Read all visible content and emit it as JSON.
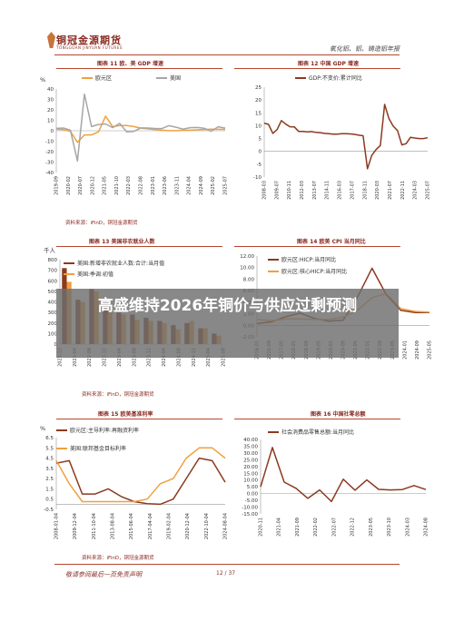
{
  "header": {
    "logo_text": "铜冠金源期货",
    "logo_sub": "TONGGUAN JINYUAN FUTURES",
    "right_title": "氧化铝、铝、铸造铝年报"
  },
  "charts": [
    {
      "caption": "图表 11 欧、美 GDP 增速",
      "source": "资料来源：iFinD，铜冠金源期货"
    },
    {
      "caption": "图表 12 中国 GDP 增速",
      "source": ""
    },
    {
      "caption": "图表 13 美国非农就业人数",
      "source": "资料来源：iFinD，铜冠金源期货"
    },
    {
      "caption": "图表 14 欧美 CPI 当月同比",
      "source": ""
    },
    {
      "caption": "图表 15 欧美基准利率",
      "source": "资料来源：iFinD，铜冠金源期货"
    },
    {
      "caption": "图表 16 中国社零总额",
      "source": ""
    }
  ],
  "footer": {
    "left": "敬请参阅最后一页免责声明",
    "page": "12 / 37"
  },
  "overlay": {
    "title": "高盛维持2026年铜价与供应过剩预测"
  },
  "colors": {
    "orange": "#f0a040",
    "gray": "#a6a6a6",
    "brown": "#8b3a1e",
    "accent": "#b5472f"
  },
  "chart_data": [
    {
      "type": "line",
      "ylabel": "%",
      "ylim": [
        -40,
        40
      ],
      "yticks": [
        40,
        30,
        20,
        10,
        0,
        -10,
        -20,
        -30,
        -40
      ],
      "x": [
        "2019-09",
        "2019-12",
        "2020-03",
        "2020-06",
        "2020-09",
        "2020-12",
        "2021-03",
        "2021-06",
        "2021-09",
        "2021-12",
        "2022-03",
        "2022-06",
        "2022-09",
        "2022-12",
        "2023-03",
        "2023-06",
        "2023-09",
        "2023-12",
        "2024-03",
        "2024-06",
        "2024-09",
        "2024-12",
        "2025-03",
        "2025-06",
        "2025-09"
      ],
      "xticks": [
        "2019-09",
        "2020-02",
        "2020-07",
        "2020-12",
        "2021-05",
        "2021-10",
        "2022-03",
        "2022-08",
        "2023-01",
        "2023-06",
        "2023-11",
        "2024-04",
        "2024-09",
        "2025-02",
        "2025-07"
      ],
      "series": [
        {
          "name": "欧元区",
          "color": "#f0a040",
          "values": [
            1.6,
            1.0,
            -0.5,
            -11,
            -4,
            -4,
            -1,
            14,
            4,
            5,
            5,
            4,
            2.5,
            1.8,
            1,
            0.5,
            0.1,
            0.1,
            0.5,
            0.5,
            0.9,
            1.2,
            1.5,
            1.4,
            1.3
          ]
        },
        {
          "name": "美国",
          "color": "#a6a6a6",
          "values": [
            2.3,
            2.6,
            0.6,
            -29,
            35,
            4,
            6,
            6.5,
            3,
            7,
            -1,
            -0.6,
            2.7,
            2.6,
            2.2,
            2.1,
            4.9,
            3.4,
            1.6,
            3,
            3.1,
            2.4,
            -0.5,
            3.8,
            2.5
          ]
        }
      ]
    },
    {
      "type": "line",
      "ylim": [
        -10,
        25
      ],
      "yticks": [
        25,
        20,
        15,
        10,
        5,
        0,
        -5,
        -10
      ],
      "x": [
        "2008-03",
        "2008-12",
        "2009-06",
        "2009-12",
        "2010-06",
        "2010-12",
        "2011-06",
        "2011-12",
        "2012-06",
        "2012-12",
        "2013-06",
        "2013-12",
        "2014-06",
        "2014-12",
        "2015-06",
        "2015-12",
        "2016-06",
        "2016-12",
        "2017-06",
        "2017-12",
        "2018-06",
        "2018-12",
        "2019-06",
        "2019-12",
        "2020-03",
        "2020-06",
        "2020-09",
        "2020-12",
        "2021-03",
        "2021-06",
        "2021-09",
        "2021-12",
        "2022-06",
        "2022-12",
        "2023-06",
        "2023-12",
        "2024-06",
        "2024-12",
        "2025-06"
      ],
      "xticks": [
        "2008-03",
        "2009-07",
        "2010-11",
        "2012-03",
        "2013-07",
        "2014-11",
        "2016-03",
        "2017-07",
        "2018-11",
        "2020-03",
        "2021-07",
        "2022-11",
        "2024-03",
        "2025-07"
      ],
      "series": [
        {
          "name": "GDP:不变价:累计同比",
          "color": "#8b3a1e",
          "values": [
            11,
            10.5,
            7,
            8.5,
            12,
            10.6,
            9.6,
            9.5,
            7.8,
            7.8,
            7.6,
            7.7,
            7.4,
            7.3,
            7,
            6.9,
            6.7,
            6.7,
            6.9,
            6.9,
            6.8,
            6.6,
            6.3,
            6.1,
            -6.8,
            -1.6,
            0.7,
            2.3,
            18.3,
            12.7,
            9.8,
            8.1,
            2.5,
            3,
            5.5,
            5.2,
            5,
            5,
            5.3
          ]
        }
      ]
    },
    {
      "type": "bar",
      "ylabel": "千人",
      "ylim": [
        0,
        800
      ],
      "yticks": [
        800,
        700,
        600,
        500,
        400,
        300,
        200,
        100,
        0
      ],
      "x": [
        "2021-12",
        "2022-04",
        "2022-08",
        "2022-12",
        "2023-04",
        "2023-08",
        "2023-12",
        "2024-04",
        "2024-08",
        "2024-12",
        "2025-04",
        "2025-08"
      ],
      "series": [
        {
          "name": "美国:新增非农就业人数:合计:当月值",
          "color": "#8b3a1e",
          "values": [
            720,
            420,
            520,
            380,
            300,
            280,
            250,
            220,
            180,
            200,
            150,
            100
          ]
        },
        {
          "name": "美国:季调:初值",
          "color": "#f0a040",
          "values": [
            590,
            400,
            500,
            310,
            280,
            230,
            220,
            200,
            140,
            220,
            150,
            80
          ]
        }
      ]
    },
    {
      "type": "line",
      "ylim": [
        -2,
        12
      ],
      "yticks": [
        12,
        10,
        8,
        6,
        4,
        2,
        0,
        -2
      ],
      "x": [
        "2016-01",
        "2016-11",
        "2017-09",
        "2018-07",
        "2019-05",
        "2020-03",
        "2021-01",
        "2021-11",
        "2022-09",
        "2023-07",
        "2024-05",
        "2025-03",
        "2025-09"
      ],
      "xticks": [
        "2016-01",
        "2016-09",
        "2017-05",
        "2018-01",
        "2018-09",
        "2019-05",
        "2020-01",
        "2020-09",
        "2021-05",
        "2022-01",
        "2022-09",
        "2023-05",
        "2024-01",
        "2024-09",
        "2025-05"
      ],
      "series": [
        {
          "name": "欧元区:HICP:当月同比",
          "color": "#8b3a1e",
          "values": [
            0.3,
            0.6,
            1.5,
            2.1,
            1.2,
            0.7,
            0.9,
            4.9,
            9.9,
            5.3,
            2.6,
            2.2,
            2.2
          ]
        },
        {
          "name": "欧元区:核心HICP:当月同比",
          "color": "#f0a040",
          "values": [
            1,
            0.8,
            1.1,
            1.1,
            1,
            1,
            1.4,
            2.6,
            4.8,
            5.5,
            2.9,
            2.4,
            2.3
          ]
        }
      ]
    },
    {
      "type": "line",
      "ylabel": "%",
      "ylim": [
        -0.5,
        6.5
      ],
      "yticks": [
        6.5,
        5.5,
        4.5,
        3.5,
        2.5,
        1.5,
        0.5,
        -0.5
      ],
      "x": [
        "2008-01",
        "2008-09",
        "2009-05",
        "2010-01",
        "2011-07",
        "2012-07",
        "2014-01",
        "2016-01",
        "2019-09",
        "2022-07",
        "2022-12",
        "2023-09",
        "2024-06",
        "2025-06"
      ],
      "xticks": [
        "2008-01-04",
        "2009-12-04",
        "2011-10-04",
        "2013-08-04",
        "2015-06-04",
        "2017-04-04",
        "2019-02-04",
        "2020-12-04",
        "2022-10-04",
        "2024-08-04"
      ],
      "series": [
        {
          "name": "欧元区:主导利率:再融资利率",
          "color": "#8b3a1e",
          "values": [
            4,
            4.25,
            1,
            1,
            1.5,
            0.75,
            0.25,
            0.05,
            0,
            0.5,
            2.5,
            4.5,
            4.25,
            2.15
          ]
        },
        {
          "name": "美国:联邦基金目标利率",
          "color": "#f0a040",
          "values": [
            4.25,
            2,
            0.25,
            0.25,
            0.25,
            0.25,
            0.25,
            0.5,
            2,
            2.5,
            4.5,
            5.5,
            5.5,
            4.5
          ]
        }
      ]
    },
    {
      "type": "line",
      "ylim": [
        -15,
        40
      ],
      "yticks": [
        40,
        35,
        30,
        25,
        20,
        15,
        10,
        5,
        0,
        -5,
        -10,
        -15
      ],
      "x": [
        "2020-11",
        "2021-03",
        "2021-07",
        "2021-11",
        "2022-03",
        "2022-07",
        "2022-11",
        "2023-03",
        "2023-07",
        "2023-11",
        "2024-03",
        "2024-07",
        "2024-11",
        "2025-03",
        "2025-09"
      ],
      "xticks": [
        "2020-11",
        "2021-04",
        "2021-09",
        "2022-02",
        "2022-07",
        "2022-12",
        "2023-05",
        "2023-10",
        "2024-03",
        "2024-08"
      ],
      "series": [
        {
          "name": "社会消费品零售总额:当月同比",
          "color": "#8b3a1e",
          "values": [
            5,
            34,
            8.5,
            3.9,
            -3.5,
            2.7,
            -5.9,
            10.6,
            2.5,
            10.1,
            3.1,
            2.7,
            3,
            5.9,
            3
          ]
        }
      ]
    }
  ]
}
